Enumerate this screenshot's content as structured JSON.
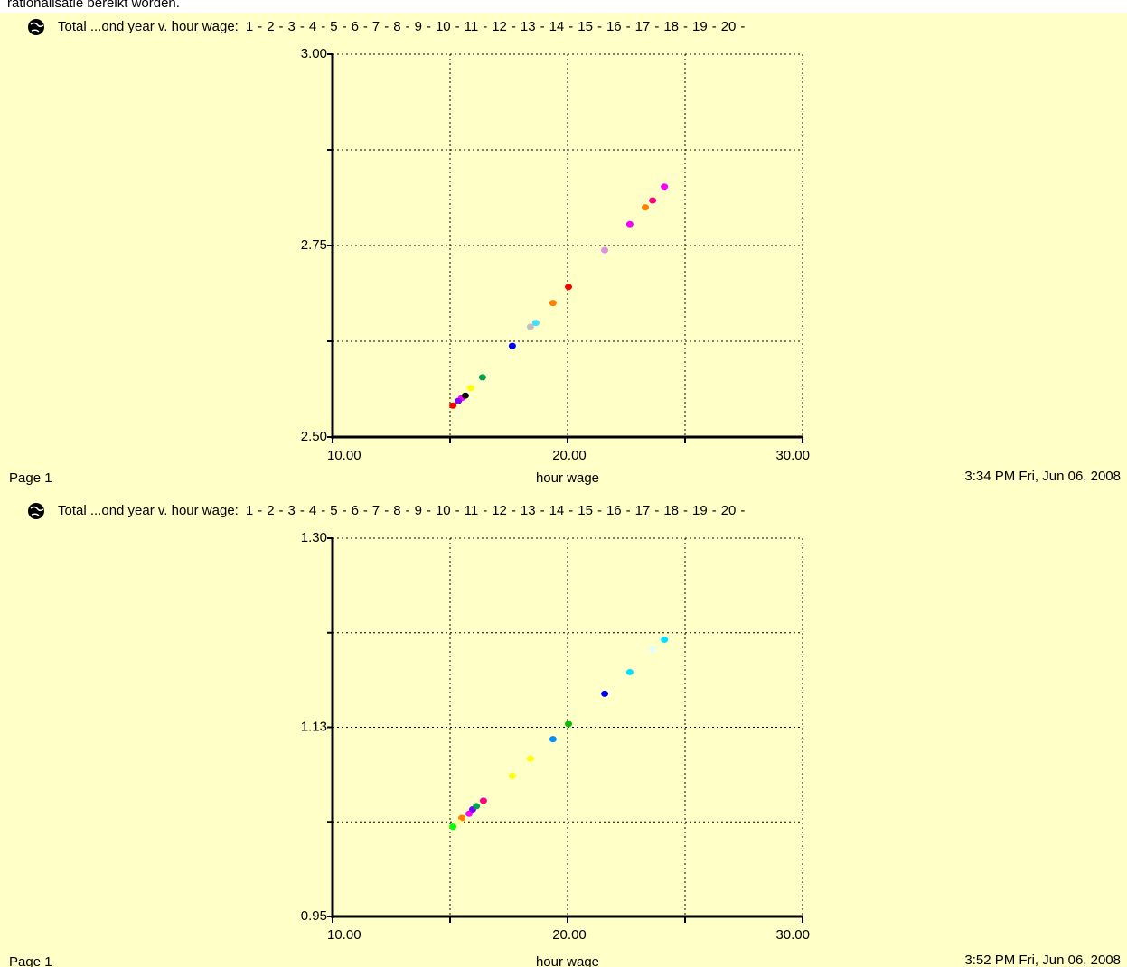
{
  "caption": "rationalisatie bereikt worden.",
  "chart_data": [
    {
      "type": "scatter",
      "title": "Total ...ond year v. hour wage:",
      "legend_separator": "-",
      "x_label": "hour wage",
      "footer_left": "Page 1",
      "timestamp": "3:34 PM   Fri, Jun 06, 2008",
      "xlim": [
        10,
        30
      ],
      "xticks": [
        {
          "value": 10,
          "label": "10.00"
        },
        {
          "value": 20,
          "label": "20.00"
        },
        {
          "value": 30,
          "label": "30.00"
        }
      ],
      "xgrid": [
        15,
        25
      ],
      "ylim": [
        2.5,
        3.0
      ],
      "yticks": [
        {
          "value": 2.5,
          "label": "2.50"
        },
        {
          "value": 2.75,
          "label": "2.75"
        },
        {
          "value": 3.0,
          "label": "3.00"
        }
      ],
      "ygrid": [
        2.625,
        2.875
      ],
      "series": [
        {
          "name": "1",
          "color": "#0000ff",
          "x": [
            17.65
          ],
          "values": [
            2.619
          ]
        },
        {
          "name": "2",
          "color": "#ff0000",
          "x": [
            20.04
          ],
          "values": [
            2.696
          ]
        },
        {
          "name": "3",
          "color": "#ff00ff",
          "x": [
            15.5
          ],
          "values": [
            2.551
          ]
        },
        {
          "name": "4",
          "color": "#00a000",
          "x": [],
          "values": []
        },
        {
          "name": "5",
          "color": "#ff8000",
          "x": [
            19.38
          ],
          "values": [
            2.675
          ]
        },
        {
          "name": "6",
          "color": "#ffff00",
          "x": [
            15.88
          ],
          "values": [
            2.564
          ]
        },
        {
          "name": "7",
          "color": "#00ff00",
          "x": [],
          "values": []
        },
        {
          "name": "8",
          "color": "#40e0ff",
          "x": [
            18.65
          ],
          "values": [
            2.649
          ]
        },
        {
          "name": "9",
          "color": "#ff0080",
          "x": [
            23.62
          ],
          "values": [
            2.809
          ]
        },
        {
          "name": "10",
          "color": "#0090ff",
          "x": [],
          "values": []
        },
        {
          "name": "11",
          "color": "#8000ff",
          "x": [
            15.35
          ],
          "values": [
            2.547
          ]
        },
        {
          "name": "12",
          "color": "#e090e0",
          "x": [
            21.58
          ],
          "values": [
            2.744
          ]
        },
        {
          "name": "13",
          "color": "#ffffa0",
          "x": [],
          "values": []
        },
        {
          "name": "14",
          "color": "#e0ffff",
          "x": [],
          "values": []
        },
        {
          "name": "15",
          "color": "#000000",
          "x": [
            15.65
          ],
          "values": [
            2.554
          ]
        },
        {
          "name": "16",
          "color": "#c0c0c0",
          "x": [
            18.42
          ],
          "values": [
            2.644
          ]
        },
        {
          "name": "17",
          "color": "#ff0000",
          "x": [
            15.12
          ],
          "values": [
            2.541
          ]
        },
        {
          "name": "18",
          "color": "#ff00ff",
          "x": [
            22.65,
            24.12
          ],
          "values": [
            2.778,
            2.827
          ]
        },
        {
          "name": "19",
          "color": "#00a050",
          "x": [
            16.38
          ],
          "values": [
            2.578
          ]
        },
        {
          "name": "20",
          "color": "#ff8000",
          "x": [
            23.31
          ],
          "values": [
            2.8
          ]
        }
      ]
    },
    {
      "type": "scatter",
      "title": "Total ...ond year v. hour wage:",
      "legend_separator": "-",
      "x_label": "hour wage",
      "footer_left": "Page 1",
      "timestamp": "3:52 PM   Fri, Jun 06, 2008",
      "xlim": [
        10,
        30
      ],
      "xticks": [
        {
          "value": 10,
          "label": "10.00"
        },
        {
          "value": 20,
          "label": "20.00"
        },
        {
          "value": 30,
          "label": "30.00"
        }
      ],
      "xgrid": [
        15,
        25
      ],
      "ylim": [
        0.95,
        1.3
      ],
      "yticks": [
        {
          "value": 0.95,
          "label": "0.95"
        },
        {
          "value": 1.125,
          "label": "1.13"
        },
        {
          "value": 1.3,
          "label": "1.30"
        }
      ],
      "ygrid": [
        1.0375,
        1.2125
      ],
      "series": [
        {
          "name": "1",
          "color": "#0000ff",
          "x": [
            21.58
          ],
          "values": [
            1.156
          ]
        },
        {
          "name": "2",
          "color": "#ff0000",
          "x": [],
          "values": []
        },
        {
          "name": "3",
          "color": "#ff00ff",
          "x": [
            15.81
          ],
          "values": [
            1.045
          ]
        },
        {
          "name": "4",
          "color": "#00c000",
          "x": [
            20.04
          ],
          "values": [
            1.128
          ]
        },
        {
          "name": "5",
          "color": "#ff8000",
          "x": [
            15.5
          ],
          "values": [
            1.041
          ]
        },
        {
          "name": "6",
          "color": "#ffff00",
          "x": [
            17.65,
            18.42
          ],
          "values": [
            1.08,
            1.096
          ]
        },
        {
          "name": "7",
          "color": "#00ff00",
          "x": [
            15.12
          ],
          "values": [
            1.033
          ]
        },
        {
          "name": "8",
          "color": "#00e0ff",
          "x": [
            22.65,
            24.12
          ],
          "values": [
            1.176,
            1.206
          ]
        },
        {
          "name": "9",
          "color": "#ff0080",
          "x": [
            16.42
          ],
          "values": [
            1.057
          ]
        },
        {
          "name": "10",
          "color": "#0090ff",
          "x": [
            19.38
          ],
          "values": [
            1.114
          ]
        },
        {
          "name": "11",
          "color": "#8000ff",
          "x": [
            15.96
          ],
          "values": [
            1.049
          ]
        },
        {
          "name": "12",
          "color": "#e090e0",
          "x": [],
          "values": []
        },
        {
          "name": "13",
          "color": "#ffffa0",
          "x": [
            15.35
          ],
          "values": [
            1.037
          ]
        },
        {
          "name": "14",
          "color": "#e0ffff",
          "x": [
            23.62
          ],
          "values": [
            1.197
          ]
        },
        {
          "name": "15",
          "color": "#000000",
          "x": [],
          "values": []
        },
        {
          "name": "16",
          "color": "#c0c0c0",
          "x": [],
          "values": []
        },
        {
          "name": "17",
          "color": "#ff0000",
          "x": [],
          "values": []
        },
        {
          "name": "18",
          "color": "#ff00ff",
          "x": [],
          "values": []
        },
        {
          "name": "19",
          "color": "#00a050",
          "x": [
            16.12
          ],
          "values": [
            1.052
          ]
        },
        {
          "name": "20",
          "color": "#ff8000",
          "x": [],
          "values": []
        }
      ]
    }
  ]
}
